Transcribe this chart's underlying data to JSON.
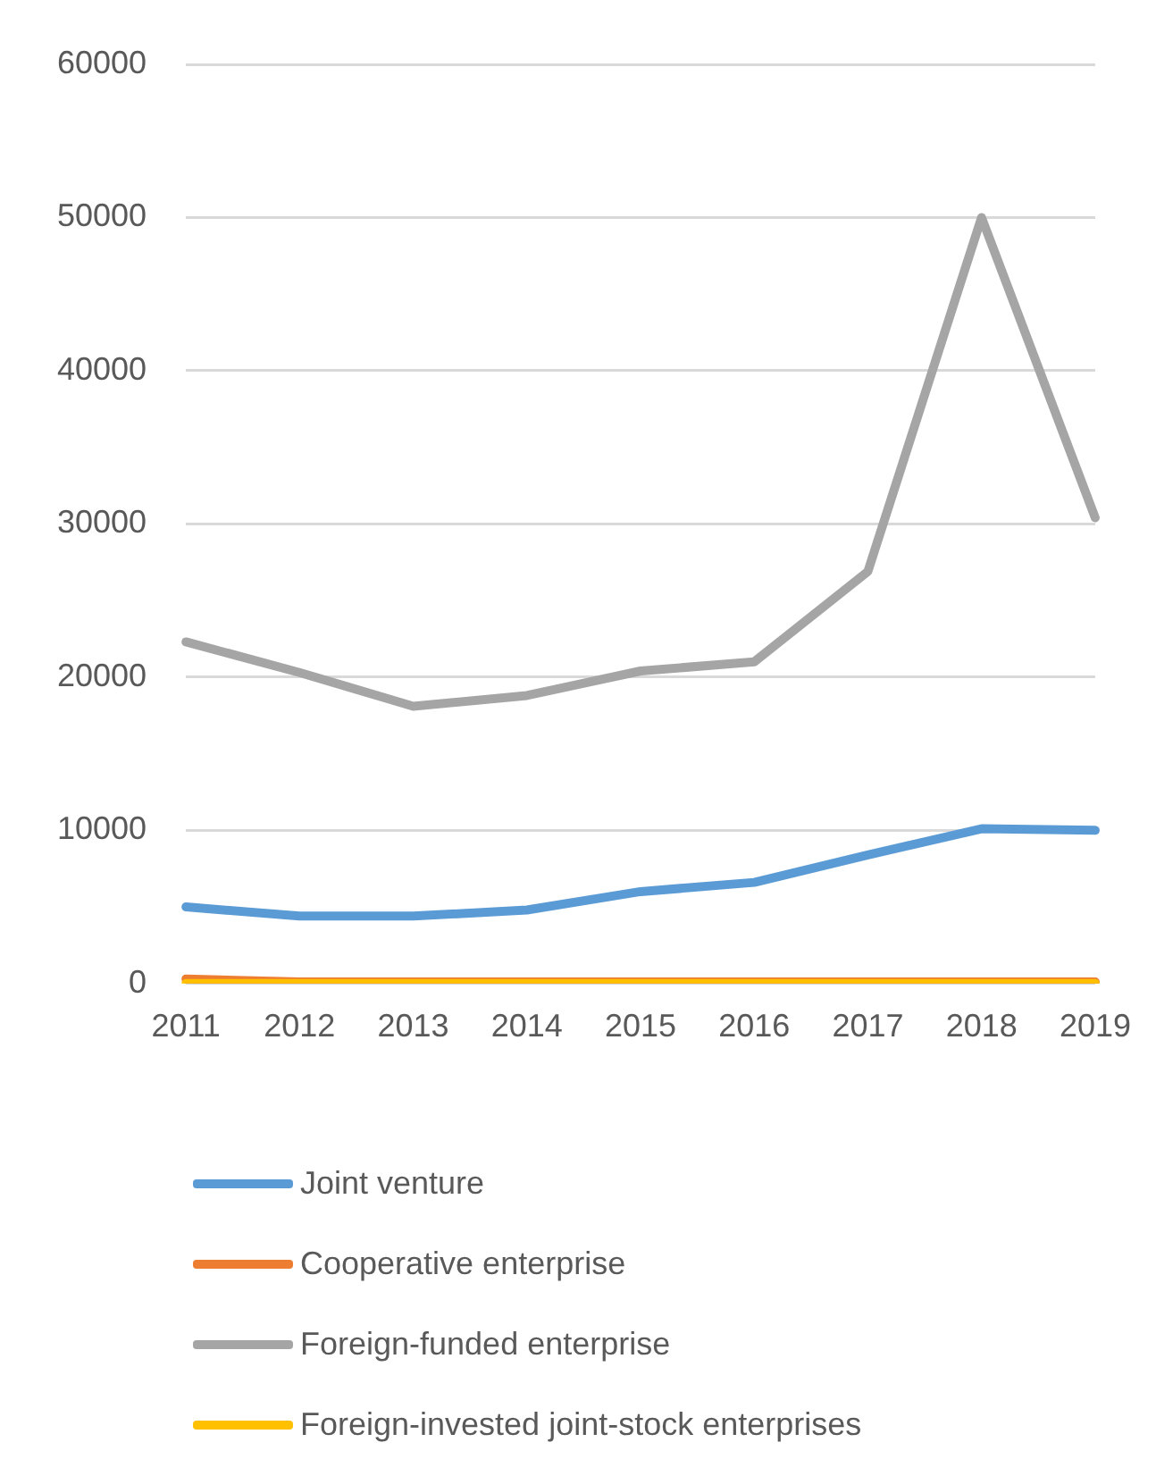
{
  "chart_data": {
    "type": "line",
    "categories": [
      "2011",
      "2012",
      "2013",
      "2014",
      "2015",
      "2016",
      "2017",
      "2018",
      "2019"
    ],
    "series": [
      {
        "name": "Joint venture",
        "color": "#5b9bd5",
        "values": [
          5000,
          4400,
          4400,
          4800,
          6000,
          6600,
          8400,
          10100,
          10000
        ]
      },
      {
        "name": "Cooperative enterprise",
        "color": "#ed7d31",
        "values": [
          300,
          100,
          100,
          100,
          100,
          100,
          100,
          100,
          100
        ]
      },
      {
        "name": "Foreign-funded enterprise",
        "color": "#a5a5a5",
        "values": [
          22300,
          20300,
          18100,
          18800,
          20400,
          21000,
          26900,
          50000,
          30400
        ]
      },
      {
        "name": "Foreign-invested joint-stock enterprises",
        "color": "#ffc000",
        "values": [
          0,
          0,
          0,
          0,
          0,
          0,
          0,
          0,
          0
        ]
      }
    ],
    "ylim": [
      0,
      60000
    ],
    "yticks": [
      0,
      10000,
      20000,
      30000,
      40000,
      50000,
      60000
    ],
    "grid": "y",
    "legend": "bottom",
    "marker": "none",
    "line_style": "solid"
  }
}
